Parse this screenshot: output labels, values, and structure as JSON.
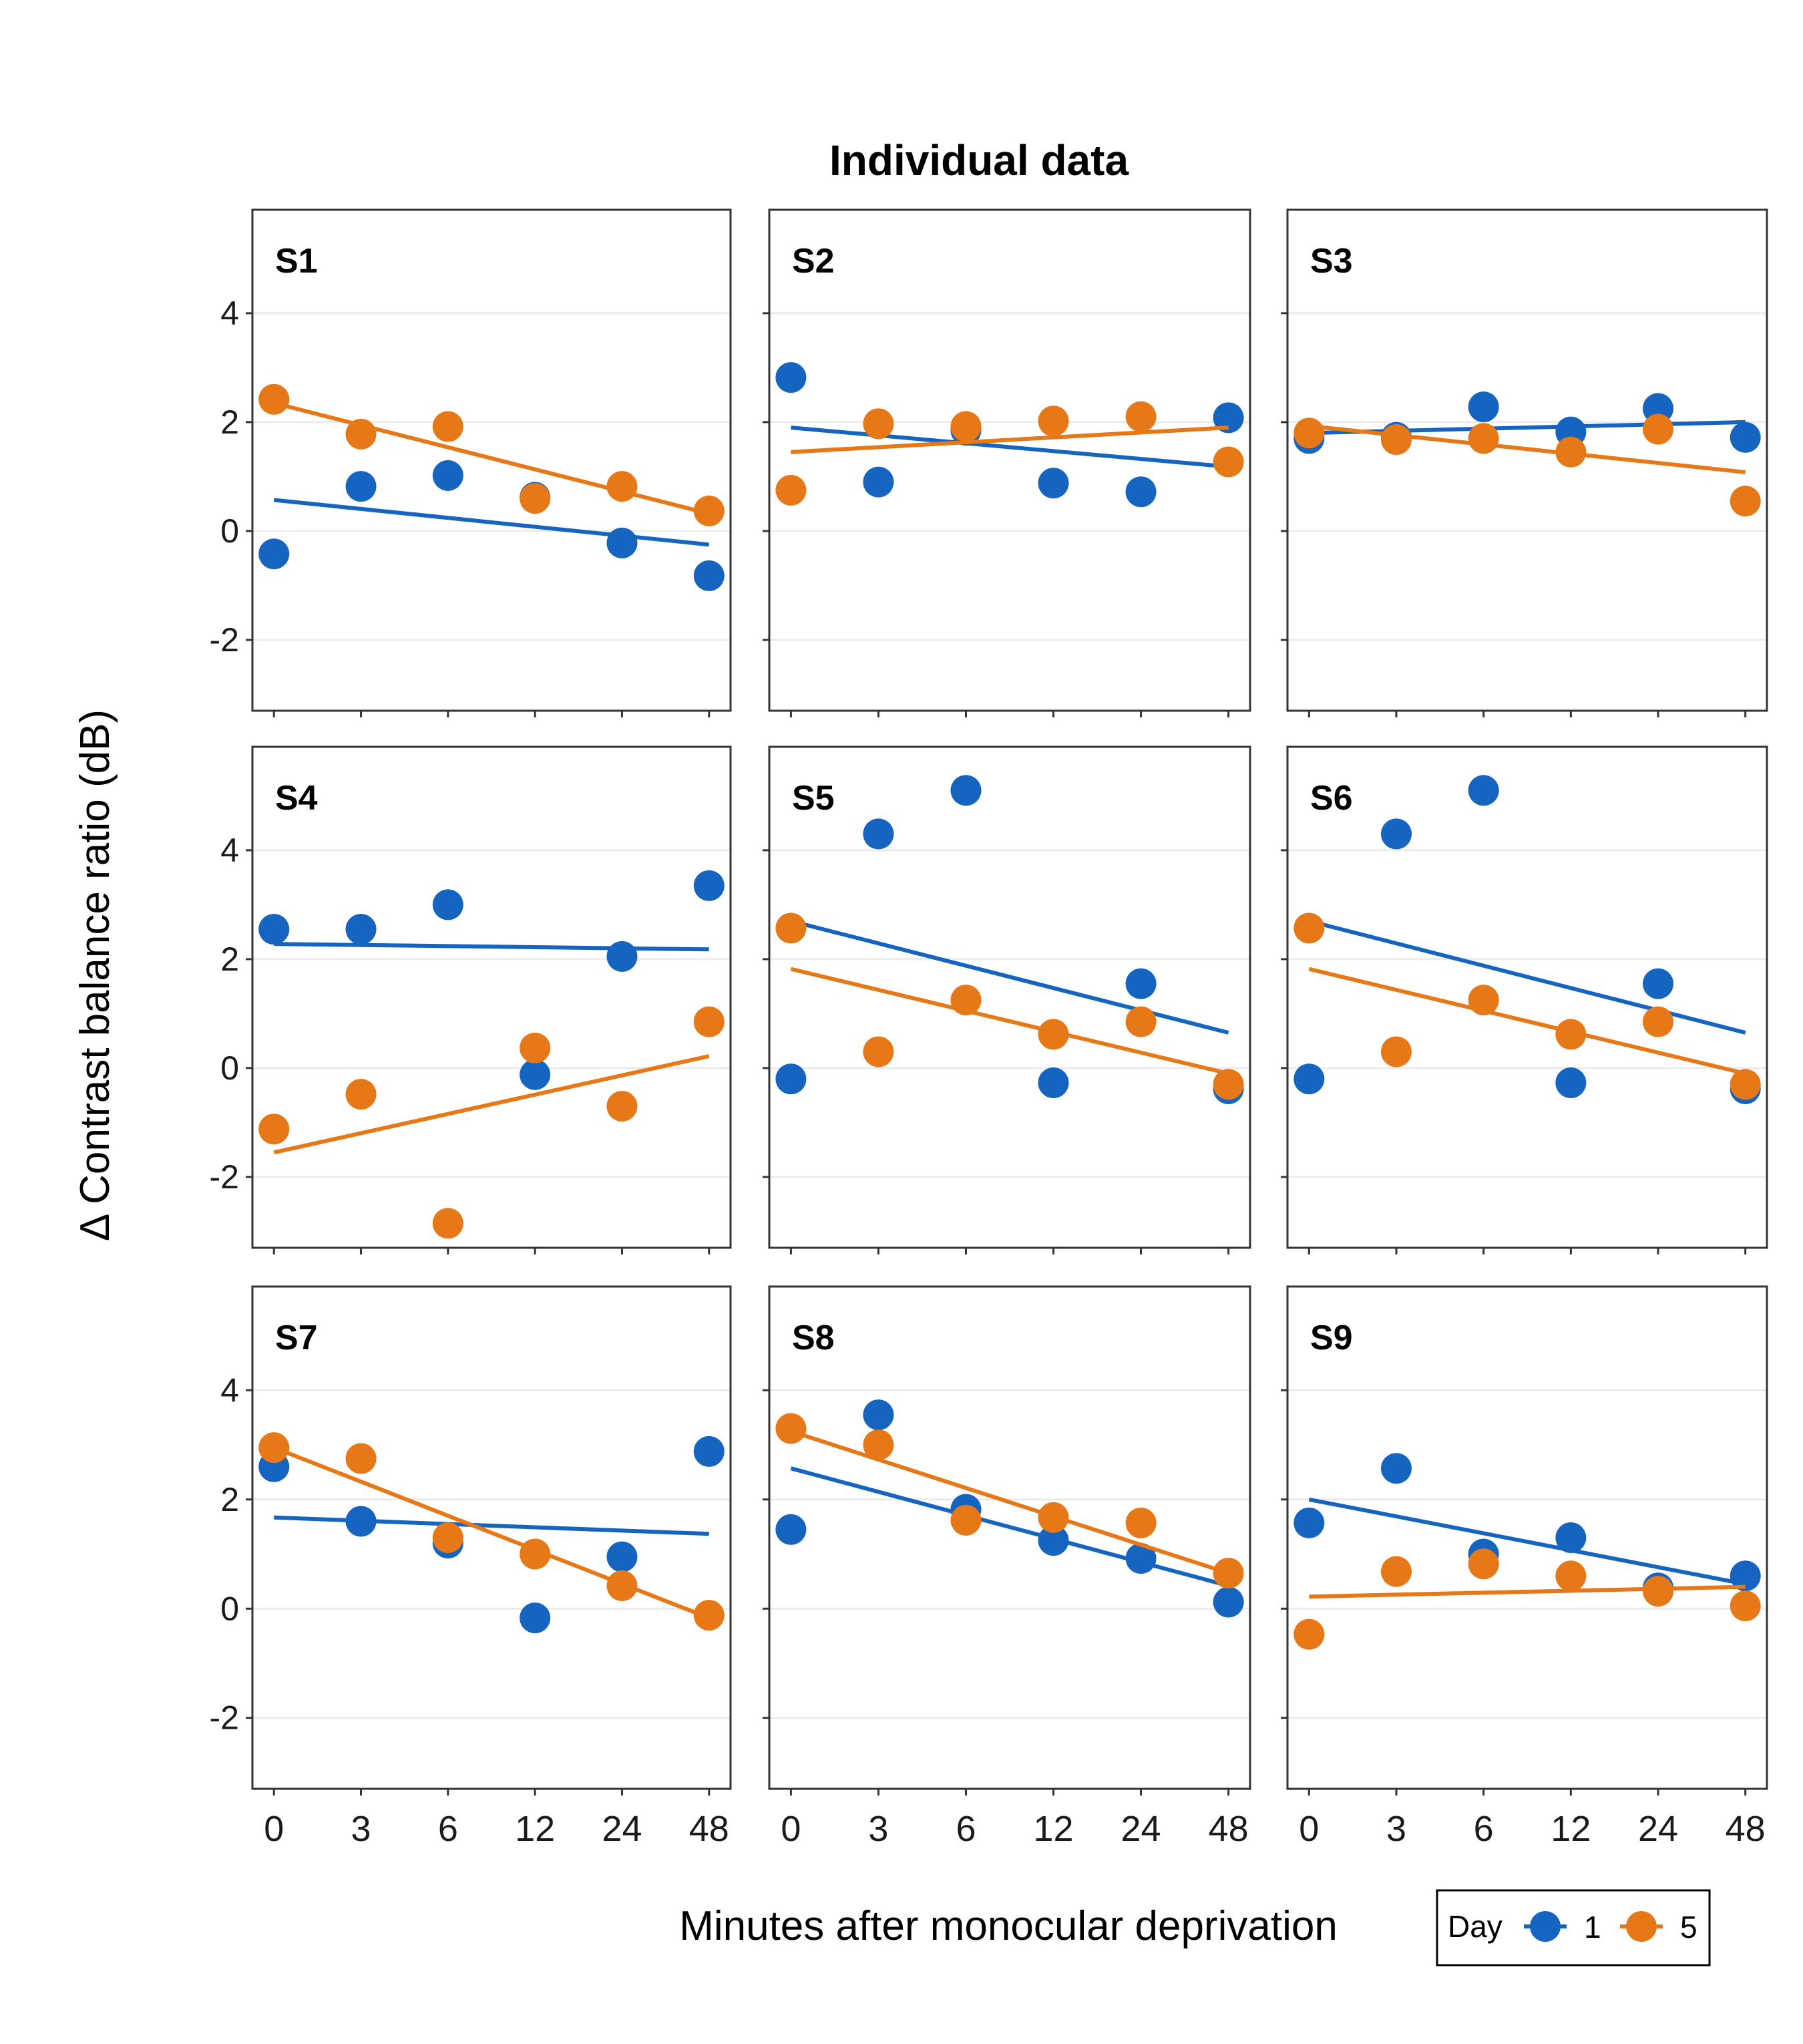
{
  "colors": {
    "day1": "#1565c0",
    "day5": "#e67817",
    "grid": "#ebebeb",
    "frame": "#333333",
    "text": "#000000"
  },
  "chart_data": {
    "type": "scatter",
    "title": "Individual data",
    "xlabel": "Minutes after monocular deprivation",
    "ylabel": "Δ Contrast balance ratio (dB)",
    "x_categories": [
      "0",
      "3",
      "6",
      "12",
      "24",
      "48"
    ],
    "y_ticks": [
      "4",
      "2",
      "0",
      "-2"
    ],
    "ylim": [
      -3.3,
      5.9
    ],
    "grid": "horizontal",
    "legend": {
      "title": "Day",
      "placement": "bottom-right",
      "entries": [
        "1",
        "5"
      ]
    },
    "panels": [
      {
        "name": "S1",
        "day1": [
          -0.42,
          0.82,
          1.02,
          0.62,
          -0.22,
          -0.82
        ],
        "day1_fit": [
          0.57,
          -0.25
        ],
        "day5": [
          2.42,
          1.78,
          1.92,
          0.6,
          0.82,
          0.37
        ],
        "day5_fit": [
          2.35,
          0.32
        ]
      },
      {
        "name": "S2",
        "day1": [
          2.82,
          0.9,
          1.85,
          0.88,
          0.72,
          2.08
        ],
        "day1_fit": [
          1.9,
          1.18
        ],
        "day5": [
          0.75,
          1.97,
          1.92,
          2.02,
          2.1,
          1.27
        ],
        "day5_fit": [
          1.45,
          1.9
        ]
      },
      {
        "name": "S3",
        "day1": [
          1.7,
          1.72,
          2.28,
          1.82,
          2.25,
          1.72
        ],
        "day1_fit": [
          1.8,
          2.0
        ],
        "day5": [
          1.8,
          1.68,
          1.7,
          1.45,
          1.87,
          0.55
        ],
        "day5_fit": [
          1.93,
          1.08
        ]
      },
      {
        "name": "S4",
        "day1": [
          2.55,
          2.55,
          3.0,
          -0.12,
          2.05,
          3.35
        ],
        "day1_fit": [
          2.28,
          2.18
        ],
        "day5": [
          -1.12,
          -0.48,
          -2.85,
          0.37,
          -0.7,
          0.85
        ],
        "day5_fit": [
          -1.55,
          0.22
        ]
      },
      {
        "name": "S5",
        "day1": [
          -0.2,
          4.3,
          5.1,
          -0.27,
          1.55,
          -0.38
        ],
        "day1_fit": [
          2.7,
          0.65
        ],
        "day5": [
          2.57,
          0.3,
          1.25,
          0.62,
          0.85,
          -0.3
        ],
        "day5_fit": [
          1.82,
          -0.1
        ]
      },
      {
        "name": "S6",
        "day1": [
          -0.2,
          4.3,
          5.1,
          -0.27,
          1.55,
          -0.38
        ],
        "day1_fit": [
          2.7,
          0.65
        ],
        "day5": [
          2.57,
          0.3,
          1.25,
          0.62,
          0.85,
          -0.3
        ],
        "day5_fit": [
          1.82,
          -0.1
        ]
      },
      {
        "name": "S7",
        "day1": [
          2.6,
          1.6,
          1.2,
          -0.17,
          0.95,
          2.88
        ],
        "day1_fit": [
          1.67,
          1.37
        ],
        "day5": [
          2.95,
          2.75,
          1.3,
          1.0,
          0.42,
          -0.12
        ],
        "day5_fit": [
          2.95,
          -0.17
        ]
      },
      {
        "name": "S8",
        "day1": [
          1.45,
          3.55,
          1.82,
          1.25,
          0.92,
          0.12
        ],
        "day1_fit": [
          2.57,
          0.42
        ],
        "day5": [
          3.3,
          3.0,
          1.62,
          1.67,
          1.57,
          0.65
        ],
        "day5_fit": [
          3.25,
          0.65
        ]
      },
      {
        "name": "S9",
        "day1": [
          1.57,
          2.57,
          1.0,
          1.3,
          0.38,
          0.6
        ],
        "day1_fit": [
          2.0,
          0.45
        ],
        "day5": [
          -0.47,
          0.68,
          0.82,
          0.6,
          0.32,
          0.05
        ],
        "day5_fit": [
          0.22,
          0.4
        ]
      }
    ]
  }
}
